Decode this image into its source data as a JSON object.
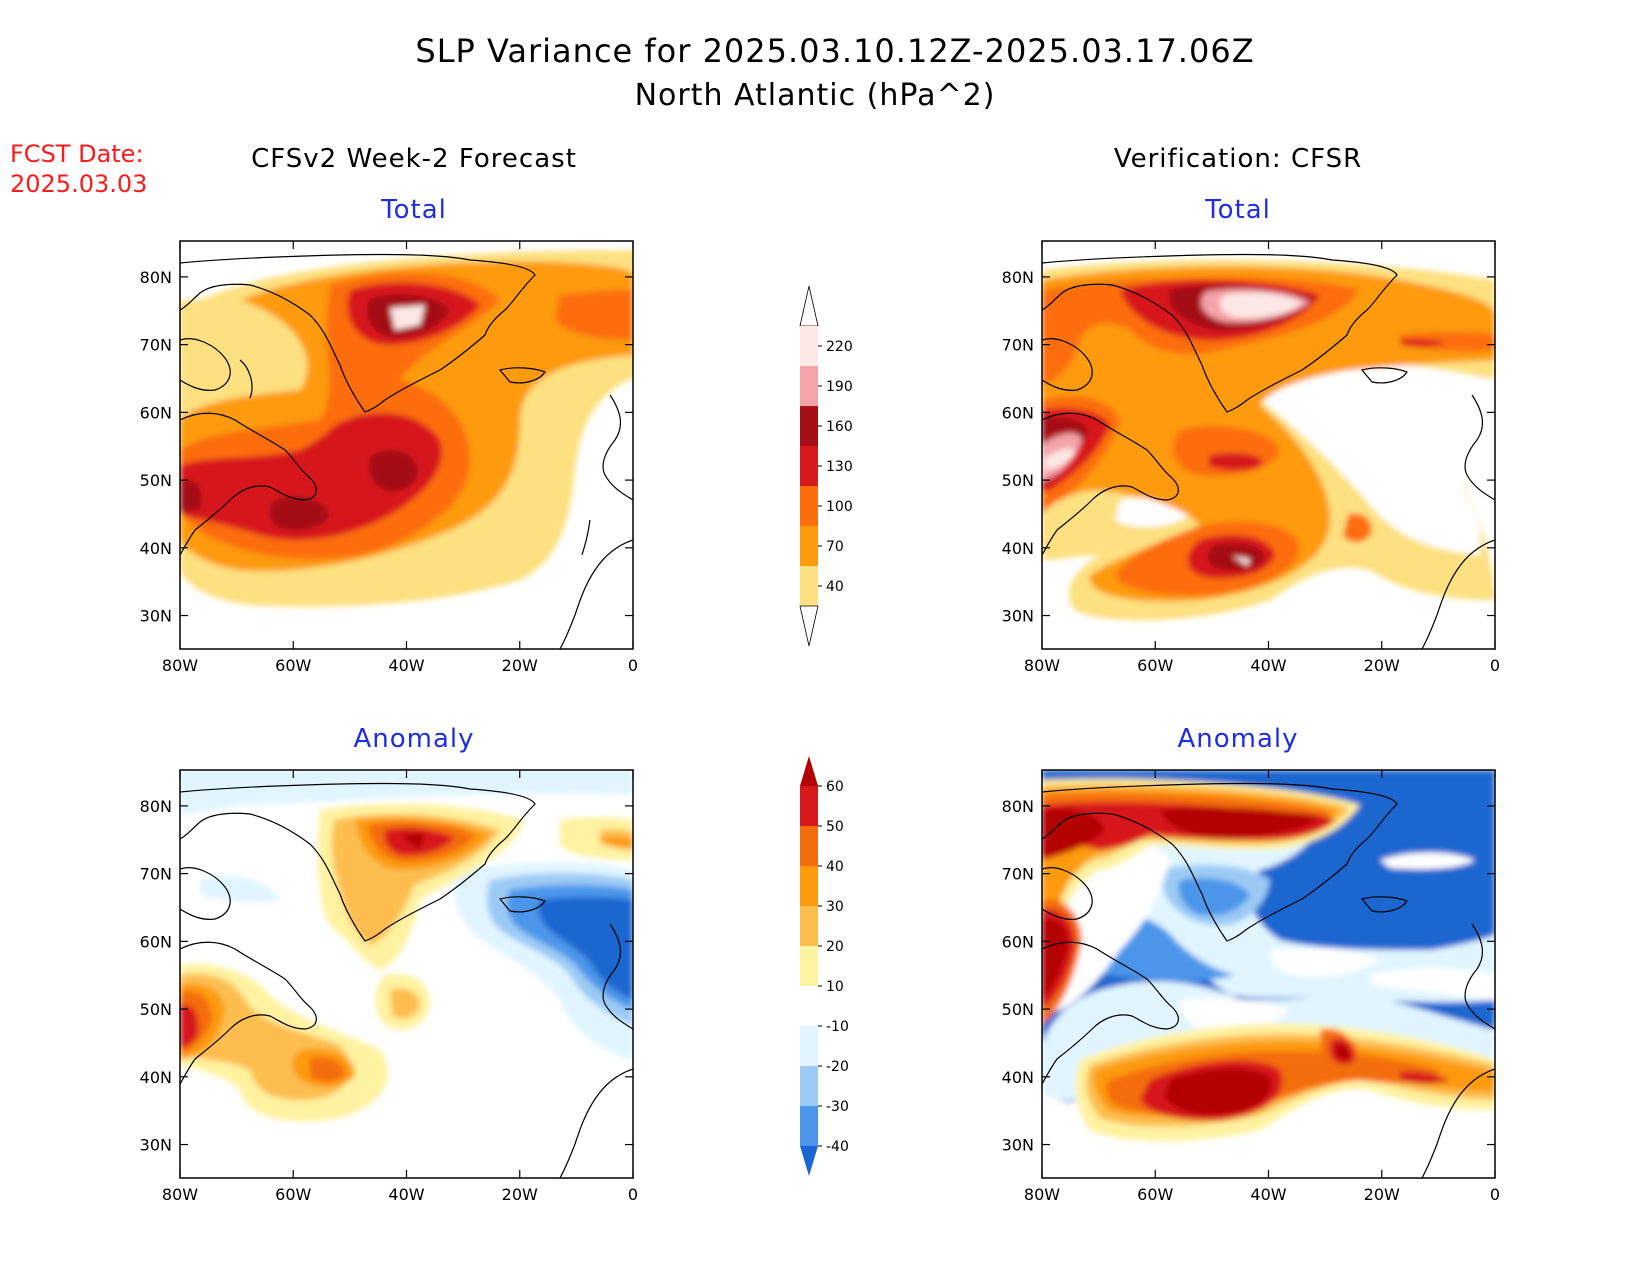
{
  "title": {
    "line1": "SLP Variance for 2025.03.10.12Z-2025.03.17.06Z",
    "line2": "North Atlantic (hPa^2)"
  },
  "fcst_date": {
    "label": "FCST Date:",
    "value": "2025.03.03"
  },
  "columns": {
    "left": "CFSv2 Week-2 Forecast",
    "right": "Verification: CFSR"
  },
  "panel_titles": {
    "total": "Total",
    "anomaly": "Anomaly"
  },
  "axes": {
    "lat_ticks": [
      "80N",
      "70N",
      "60N",
      "50N",
      "40N",
      "30N"
    ],
    "lon_ticks": [
      "80W",
      "60W",
      "40W",
      "20W",
      "0"
    ]
  },
  "colorbars": {
    "total": {
      "labels": [
        "220",
        "190",
        "160",
        "130",
        "100",
        "70",
        "40"
      ],
      "colors": [
        "#fde8e6",
        "#f4a3a8",
        "#a50f15",
        "#d7191c",
        "#fc6d0c",
        "#fd9a0e",
        "#fde07f"
      ]
    },
    "anomaly": {
      "labels": [
        "60",
        "50",
        "40",
        "30",
        "20",
        "10",
        "-10",
        "-20",
        "-30",
        "-40"
      ],
      "colors": [
        "#b30000",
        "#d7191c",
        "#f46d0c",
        "#fd9a0e",
        "#fdbe4f",
        "#fff2a0",
        "#ffffff",
        "#e0f5ff",
        "#9ccaf5",
        "#4b96ea",
        "#1a66d0"
      ]
    }
  },
  "colors": {
    "title_text": "#000000",
    "panel_title": "#1f2de6",
    "fcst_date": "#ff1a1a"
  }
}
